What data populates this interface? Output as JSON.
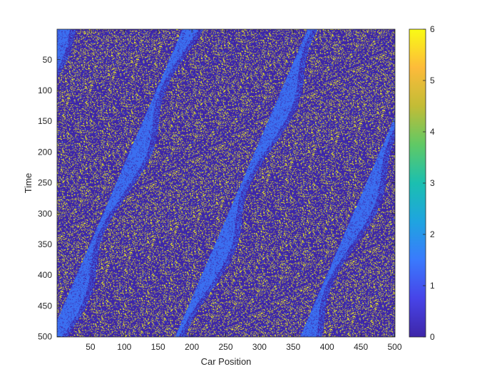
{
  "chart_data": {
    "type": "heatmap",
    "title": "",
    "xlabel": "Car Position",
    "ylabel": "Time",
    "xlim": [
      0.5,
      500.5
    ],
    "ylim": [
      0.5,
      500.5
    ],
    "y_direction": "reverse",
    "x_ticks": [
      50,
      100,
      150,
      200,
      250,
      300,
      350,
      400,
      450,
      500
    ],
    "y_ticks": [
      50,
      100,
      150,
      200,
      250,
      300,
      350,
      400,
      450,
      500
    ],
    "x_tick_labels": [
      "50",
      "100",
      "150",
      "200",
      "250",
      "300",
      "350",
      "400",
      "450",
      "500"
    ],
    "y_tick_labels": [
      "50",
      "100",
      "150",
      "200",
      "250",
      "300",
      "350",
      "400",
      "450",
      "500"
    ],
    "colorbar": {
      "range": [
        0,
        6
      ],
      "ticks": [
        0,
        1,
        2,
        3,
        4,
        5,
        6
      ],
      "tick_labels": [
        "0",
        "1",
        "2",
        "3",
        "4",
        "5",
        "6"
      ],
      "colormap": "parula",
      "colormap_stops": [
        "#3e26a8",
        "#4744e8",
        "#3a7afd",
        "#1fa4e0",
        "#1bbfb0",
        "#60c965",
        "#c2bc36",
        "#fdbb3a",
        "#f9fb15"
      ]
    },
    "background_value": 0,
    "colors": {
      "value_0": "#3e26a8",
      "value_1_2": "#3b6ff0",
      "value_6": "#f9fb15"
    },
    "features": {
      "dominant_value": 0,
      "scattered_high_value": 6,
      "jam_band_value_range": [
        1,
        2
      ],
      "jam_bands_travel": "leftward-upward diagonal bands from bottom-left to top-right, about 4 bands visible"
    },
    "grid": false,
    "legend": "none"
  }
}
